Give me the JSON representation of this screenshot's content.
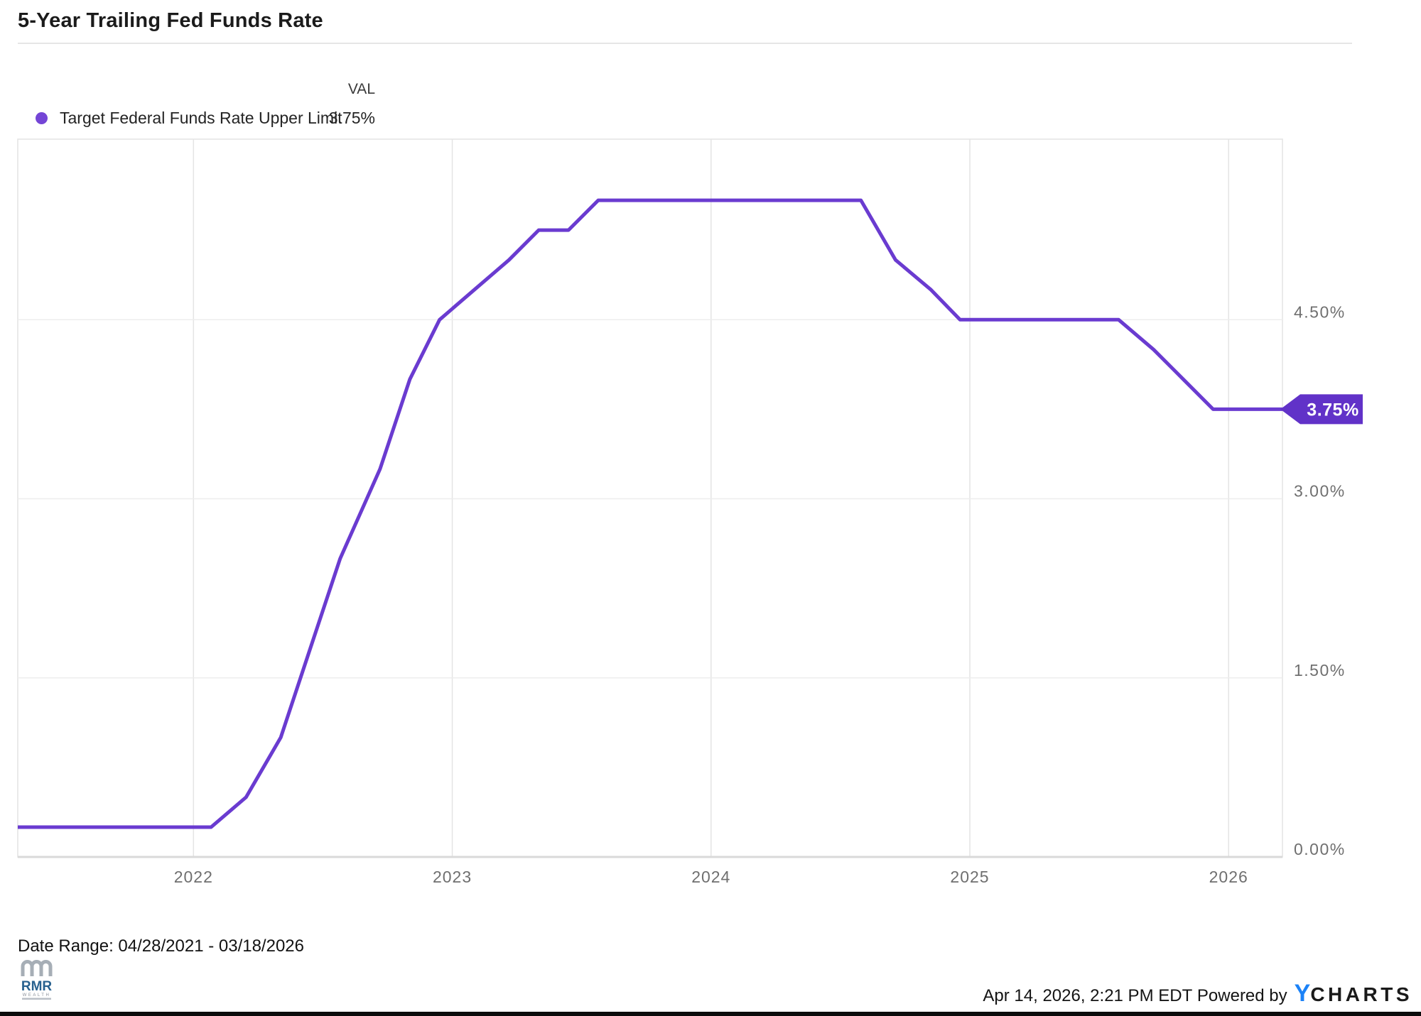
{
  "title": "5-Year Trailing Fed Funds Rate",
  "legend": {
    "val_header": "VAL",
    "series_label": "Target Federal Funds Rate Upper Limit",
    "series_value": "3.75%",
    "dot_color": "#7445d6"
  },
  "footer": {
    "date_range": "Date Range: 04/28/2021 - 03/18/2026",
    "timestamp": "Apr 14, 2026, 2:21 PM EDT",
    "powered_by": " Powered by",
    "brand_y": "Y",
    "brand_rest": "CHARTS",
    "logo_line1": "RMR",
    "logo_line2": "WEALTH"
  },
  "chart_data": {
    "type": "line",
    "title": "5-Year Trailing Fed Funds Rate",
    "series_name": "Target Federal Funds Rate Upper Limit",
    "unit": "%",
    "line_color": "#6a3bd0",
    "badge_color": "#6132c8",
    "grid_color_v": "#e4e4e4",
    "grid_color_h": "#ededed",
    "border_color": "#e3e3e3",
    "bottom_border_color": "#d9d9d9",
    "tick_color": "#6f6f6f",
    "x_range": [
      2021.321,
      2026.208
    ],
    "y_range": [
      0,
      6.012
    ],
    "x_ticks": [
      {
        "value": 2022,
        "label": "2022"
      },
      {
        "value": 2023,
        "label": "2023"
      },
      {
        "value": 2024,
        "label": "2024"
      },
      {
        "value": 2025,
        "label": "2025"
      },
      {
        "value": 2026,
        "label": "2026"
      }
    ],
    "y_ticks": [
      {
        "value": 4.5,
        "label": "4.50%"
      },
      {
        "value": 3.0,
        "label": "3.00%"
      },
      {
        "value": 1.5,
        "label": "1.50%"
      },
      {
        "value": 0.0,
        "label": "0.00%"
      }
    ],
    "last_value_label": "3.75%",
    "points": [
      [
        2021.321,
        0.25
      ],
      [
        2022.068,
        0.25
      ],
      [
        2022.203,
        0.5
      ],
      [
        2022.337,
        1.0
      ],
      [
        2022.452,
        1.75
      ],
      [
        2022.567,
        2.5
      ],
      [
        2022.721,
        3.25
      ],
      [
        2022.836,
        4.0
      ],
      [
        2022.951,
        4.5
      ],
      [
        2023.085,
        4.75
      ],
      [
        2023.219,
        5.0
      ],
      [
        2023.334,
        5.25
      ],
      [
        2023.449,
        5.25
      ],
      [
        2023.564,
        5.5
      ],
      [
        2024.579,
        5.5
      ],
      [
        2024.713,
        5.0
      ],
      [
        2024.85,
        4.75
      ],
      [
        2024.962,
        4.5
      ],
      [
        2025.575,
        4.5
      ],
      [
        2025.71,
        4.25
      ],
      [
        2025.825,
        4.0
      ],
      [
        2025.94,
        3.75
      ],
      [
        2026.208,
        3.75
      ]
    ]
  }
}
